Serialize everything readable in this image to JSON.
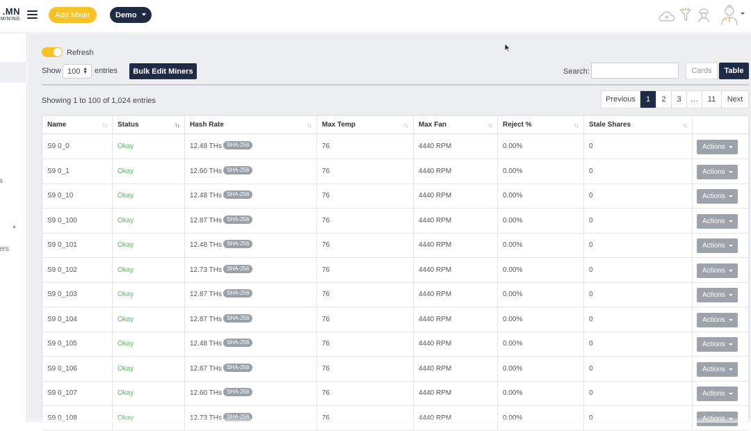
{
  "header": {
    "logo_line1": ".MN",
    "logo_line2": "MINING",
    "add_miner_label": "Add Miner",
    "demo_label": "Demo",
    "icons": [
      "menu-icon",
      "cloud-icon",
      "funnel-icon",
      "worker-icon",
      "user-avatar-icon"
    ]
  },
  "sidebar": {
    "fragments": [
      "s",
      "ers"
    ]
  },
  "toolbar": {
    "refresh_label": "Refresh",
    "refresh_on": true,
    "show_label": "Show",
    "page_size": "100",
    "entries_label": "entries",
    "bulk_edit_label": "Bulk Edit Miners",
    "search_label": "Search:",
    "search_value": "",
    "cards_label": "Cards",
    "table_label": "Table"
  },
  "summary": "Showing 1 to 100 of 1,024 entries",
  "pagination": {
    "items": [
      "Previous",
      "1",
      "2",
      "3",
      "…",
      "11",
      "Next"
    ],
    "active": "1"
  },
  "table": {
    "columns": [
      "Name",
      "Status",
      "Hash Rate",
      "Max Temp",
      "Max Fan",
      "Reject %",
      "Stale Shares",
      ""
    ],
    "sorted_column": "Status",
    "rows": [
      {
        "name": "S9 0_0",
        "status": "Okay",
        "hash": "12.48 THs",
        "algo": "SHA-256",
        "temp": "76",
        "fan": "4440 RPM",
        "reject": "0.00%",
        "stale": "0",
        "action": "Actions"
      },
      {
        "name": "S9 0_1",
        "status": "Okay",
        "hash": "12.60 THs",
        "algo": "SHA-256",
        "temp": "76",
        "fan": "4440 RPM",
        "reject": "0.00%",
        "stale": "0",
        "action": "Actions"
      },
      {
        "name": "S9 0_10",
        "status": "Okay",
        "hash": "12.48 THs",
        "algo": "SHA-256",
        "temp": "76",
        "fan": "4440 RPM",
        "reject": "0.00%",
        "stale": "0",
        "action": "Actions"
      },
      {
        "name": "S9 0_100",
        "status": "Okay",
        "hash": "12.87 THs",
        "algo": "SHA-256",
        "temp": "76",
        "fan": "4440 RPM",
        "reject": "0.00%",
        "stale": "0",
        "action": "Actions"
      },
      {
        "name": "S9 0_101",
        "status": "Okay",
        "hash": "12.48 THs",
        "algo": "SHA-256",
        "temp": "76",
        "fan": "4440 RPM",
        "reject": "0.00%",
        "stale": "0",
        "action": "Actions"
      },
      {
        "name": "S9 0_102",
        "status": "Okay",
        "hash": "12.73 THs",
        "algo": "SHA-256",
        "temp": "76",
        "fan": "4440 RPM",
        "reject": "0.00%",
        "stale": "0",
        "action": "Actions"
      },
      {
        "name": "S9 0_103",
        "status": "Okay",
        "hash": "12.87 THs",
        "algo": "SHA-256",
        "temp": "76",
        "fan": "4440 RPM",
        "reject": "0.00%",
        "stale": "0",
        "action": "Actions"
      },
      {
        "name": "S9 0_104",
        "status": "Okay",
        "hash": "12.87 THs",
        "algo": "SHA-256",
        "temp": "76",
        "fan": "4440 RPM",
        "reject": "0.00%",
        "stale": "0",
        "action": "Actions"
      },
      {
        "name": "S9 0_105",
        "status": "Okay",
        "hash": "12.48 THs",
        "algo": "SHA-256",
        "temp": "76",
        "fan": "4440 RPM",
        "reject": "0.00%",
        "stale": "0",
        "action": "Actions"
      },
      {
        "name": "S9 0_106",
        "status": "Okay",
        "hash": "12.87 THs",
        "algo": "SHA-256",
        "temp": "76",
        "fan": "4440 RPM",
        "reject": "0.00%",
        "stale": "0",
        "action": "Actions"
      },
      {
        "name": "S9 0_107",
        "status": "Okay",
        "hash": "12.60 THs",
        "algo": "SHA-256",
        "temp": "76",
        "fan": "4440 RPM",
        "reject": "0.00%",
        "stale": "0",
        "action": "Actions"
      },
      {
        "name": "S9 0_108",
        "status": "Okay",
        "hash": "12.73 THs",
        "algo": "SHA-256",
        "temp": "76",
        "fan": "4440 RPM",
        "reject": "0.00%",
        "stale": "0",
        "action": "Actions"
      }
    ]
  },
  "colors": {
    "accent": "#f6c228",
    "navy": "#1f2a44",
    "okay": "#5cb85c",
    "badge": "#9aa0a8",
    "page_bg": "#edeef0"
  }
}
